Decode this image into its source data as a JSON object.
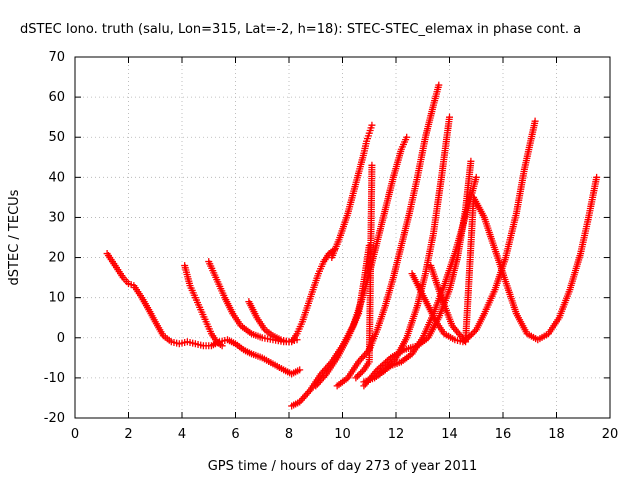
{
  "chart_data": {
    "type": "scatter",
    "title": "dSTEC Iono. truth (salu, Lon=315, Lat=-2, h=18): STEC-STEC_elemax in phase cont. a",
    "xlabel": "GPS time / hours of day 273 of year 2011",
    "ylabel": "dSTEC  / TECUs",
    "xlim": [
      0,
      20
    ],
    "ylim": [
      -20,
      70
    ],
    "xticks": [
      0,
      2,
      4,
      6,
      8,
      10,
      12,
      14,
      16,
      18,
      20
    ],
    "yticks": [
      -20,
      -10,
      0,
      10,
      20,
      30,
      40,
      50,
      60,
      70
    ],
    "grid": true,
    "marker": "+",
    "color": "#ff0000",
    "series": [
      {
        "x": [
          1.2,
          1.5,
          1.8,
          2.0,
          2.2,
          2.5,
          2.8,
          3.0,
          3.3,
          3.6,
          3.9,
          4.2,
          4.5,
          4.8,
          5.1,
          5.4,
          5.7,
          6.0,
          6.3,
          6.6,
          7.0,
          7.4,
          7.8,
          8.1,
          8.4
        ],
        "y": [
          21,
          18,
          15,
          13.5,
          13,
          10,
          6.5,
          4,
          0.5,
          -1,
          -1.5,
          -1,
          -1.5,
          -2,
          -2,
          -1,
          -0.5,
          -1.5,
          -3,
          -4,
          -5,
          -6.5,
          -8,
          -9,
          -8
        ]
      },
      {
        "x": [
          4.1,
          4.3,
          4.5,
          4.7,
          4.9,
          5.1,
          5.3,
          5.5
        ],
        "y": [
          18,
          13,
          10,
          7,
          4,
          1,
          -1,
          -2
        ]
      },
      {
        "x": [
          5.0,
          5.3,
          5.6,
          5.9,
          6.2,
          6.6,
          7.0,
          7.4,
          7.8,
          8.1,
          8.3,
          8.5,
          8.7,
          8.9,
          9.1,
          9.3,
          9.5,
          9.7
        ],
        "y": [
          19,
          14.5,
          10,
          6,
          3,
          1,
          0,
          -0.5,
          -1,
          -1,
          1,
          4,
          8,
          12,
          16,
          19,
          21,
          22
        ]
      },
      {
        "x": [
          6.5,
          6.8,
          7.1,
          7.4,
          7.7,
          8.0,
          8.3
        ],
        "y": [
          9,
          5,
          2,
          0.5,
          -0.5,
          -1,
          -0.5
        ]
      },
      {
        "x": [
          8.1,
          8.4,
          8.8,
          9.2,
          9.6,
          10.0,
          10.4,
          10.7,
          11.0,
          11.3,
          11.6,
          11.9,
          12.2,
          12.4
        ],
        "y": [
          -17,
          -16,
          -13,
          -9,
          -6,
          -2,
          3,
          9,
          16,
          24,
          32,
          40,
          47,
          50
        ]
      },
      {
        "x": [
          9.0,
          9.4,
          9.8,
          10.2,
          10.6,
          10.8,
          11.0
        ],
        "y": [
          -12,
          -9,
          -5,
          0,
          6,
          14,
          23
        ]
      },
      {
        "x": [
          9.6,
          9.9,
          10.2,
          10.4,
          10.6,
          10.8,
          10.9,
          11.0,
          11.1
        ],
        "y": [
          20,
          25,
          31,
          36,
          41,
          46,
          49,
          51,
          53
        ]
      },
      {
        "x": [
          9.8,
          10.2,
          10.6,
          11.0,
          11.3,
          11.6,
          11.9,
          12.2,
          12.5,
          12.8,
          13.1,
          13.4,
          13.6
        ],
        "y": [
          -12,
          -10,
          -6,
          -3,
          2,
          8,
          15,
          23,
          31,
          40,
          50,
          58,
          63
        ]
      },
      {
        "x": [
          10.5,
          10.8,
          11.0,
          11.1
        ],
        "y": [
          -10,
          -8,
          -6,
          43
        ]
      },
      {
        "x": [
          10.8,
          11.2,
          11.6,
          12.0,
          12.4,
          12.8,
          13.1,
          13.4,
          13.7,
          14.0
        ],
        "y": [
          -11,
          -10,
          -8,
          -5,
          0,
          8,
          16,
          26,
          40,
          55
        ]
      },
      {
        "x": [
          10.8,
          11.3,
          11.8,
          12.3,
          12.8,
          13.2,
          13.6,
          14.0,
          14.3,
          14.6,
          14.8
        ],
        "y": [
          -12,
          -8,
          -5,
          -3,
          -2,
          0,
          5,
          12,
          20,
          32,
          44
        ]
      },
      {
        "x": [
          11.4,
          11.8,
          12.2,
          12.6,
          13.0,
          13.4,
          13.8,
          14.2,
          14.5,
          14.8,
          15.0
        ],
        "y": [
          -9,
          -7,
          -6,
          -4,
          0,
          6,
          13,
          21,
          28,
          35,
          40
        ]
      },
      {
        "x": [
          12.6,
          12.9,
          13.2,
          13.5,
          13.8,
          14.2,
          14.5,
          14.7,
          15.0,
          15.3,
          15.7,
          16.1,
          16.5,
          16.8,
          17.0,
          17.2
        ],
        "y": [
          16,
          12,
          8,
          4,
          1,
          -0.5,
          -1,
          0,
          2,
          6,
          12,
          20,
          31,
          42,
          48,
          54
        ]
      },
      {
        "x": [
          13.3,
          13.7,
          14.1,
          14.6,
          14.9,
          15.3,
          15.7,
          16.1,
          16.5,
          16.9,
          17.3,
          17.7,
          18.1,
          18.5,
          18.9,
          19.2,
          19.5
        ],
        "y": [
          18,
          10,
          3,
          -1,
          35,
          30,
          22,
          14,
          6,
          1,
          -0.5,
          1,
          5,
          12,
          21,
          30,
          40
        ]
      }
    ]
  }
}
